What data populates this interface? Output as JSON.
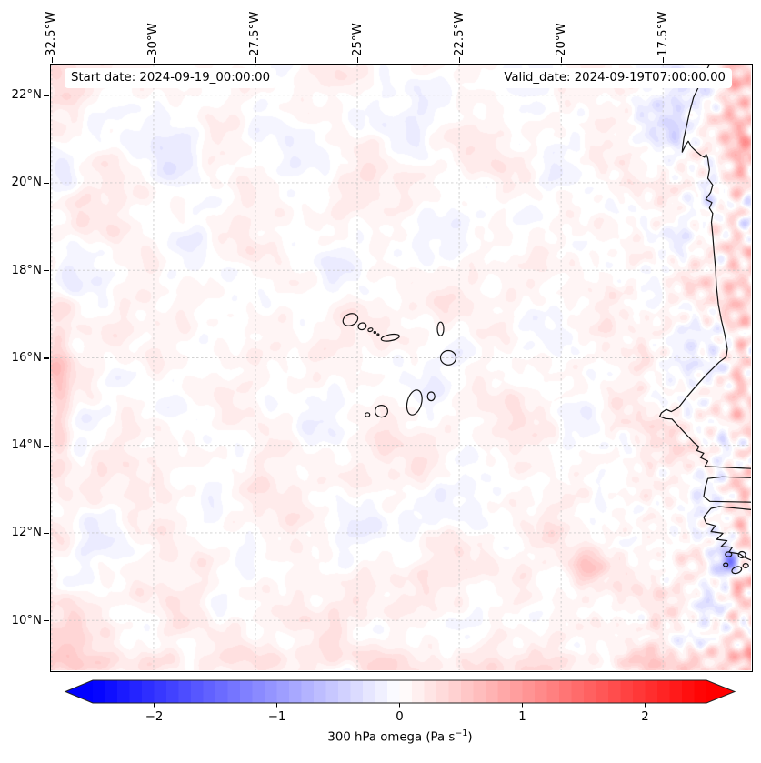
{
  "figure": {
    "annotations": {
      "start_date": "Start date: 2024-09-19_00:00:00",
      "valid_date": "Valid_date: 2024-09-19T07:00:00.00"
    },
    "axes": {
      "extent": {
        "lon_min": -32.52,
        "lon_max": -15.34,
        "lat_min": 8.86,
        "lat_max": 22.7
      },
      "grid": true,
      "x_ticks": [
        {
          "label": "32.5°W",
          "lon": -32.5
        },
        {
          "label": "30°W",
          "lon": -30.0
        },
        {
          "label": "27.5°W",
          "lon": -27.5
        },
        {
          "label": "25°W",
          "lon": -25.0
        },
        {
          "label": "22.5°W",
          "lon": -22.5
        },
        {
          "label": "20°W",
          "lon": -20.0
        },
        {
          "label": "17.5°W",
          "lon": -17.5
        }
      ],
      "y_ticks": [
        {
          "label": "22°N",
          "lat": 22
        },
        {
          "label": "20°N",
          "lat": 20
        },
        {
          "label": "18°N",
          "lat": 18
        },
        {
          "label": "16°N",
          "lat": 16
        },
        {
          "label": "14°N",
          "lat": 14
        },
        {
          "label": "12°N",
          "lat": 12
        },
        {
          "label": "10°N",
          "lat": 10
        }
      ]
    },
    "colorbar": {
      "label_prefix": "300 hPa omega (Pa s",
      "label_sup": "−1",
      "label_suffix": ")",
      "ticks": [
        "−2",
        "−1",
        "0",
        "1",
        "2"
      ],
      "tick_values": [
        -2,
        -1,
        0,
        1,
        2
      ],
      "vmin": -2.5,
      "vmax": 2.5,
      "step": 0.1,
      "colormap": "bwr",
      "extend": "both",
      "end_colors": {
        "low": "#0000ff",
        "high": "#ff0000"
      },
      "outline_color": "#222222"
    },
    "grid_color": "#c3c3c3",
    "coast_color": "#111111"
  },
  "field": {
    "quantity": "300 hPa omega",
    "units": "Pa s−1",
    "quantize_step": 0.1,
    "bias": [
      0.035,
      0.045
    ],
    "noise_octaves": [
      [
        0.105,
        0.031,
        0.009,
        1.7,
        -0.01,
        0.033,
        0.6
      ],
      [
        0.09,
        0.02,
        -0.024,
        4.2,
        0.026,
        0.018,
        2.9
      ],
      [
        0.075,
        0.013,
        0.055,
        0.9,
        0.058,
        -0.014,
        5.1
      ],
      [
        0.06,
        0.082,
        -0.022,
        2.8,
        0.024,
        0.078,
        1.3
      ],
      [
        0.05,
        0.095,
        0.08,
        5.5,
        -0.082,
        0.09,
        3.8
      ],
      [
        0.04,
        0.06,
        -0.165,
        3.3,
        0.158,
        0.052,
        0.2
      ]
    ],
    "hf_octaves": [
      [
        0.16,
        0.23,
        0.05,
        0.4,
        0.06,
        -0.21,
        2.2
      ],
      [
        0.12,
        0.16,
        -0.14,
        1.1,
        0.13,
        0.17,
        4.9
      ]
    ],
    "features": [
      [
        -15.82,
        11.34,
        14,
        -1.0
      ],
      [
        -15.82,
        11.34,
        6,
        -0.6
      ],
      [
        -16.15,
        11.97,
        20,
        -0.35
      ],
      [
        -19.43,
        11.2,
        15,
        0.45
      ],
      [
        -17.38,
        21.28,
        24,
        -0.25
      ],
      [
        -32.26,
        17.12,
        13,
        0.35
      ],
      [
        -23.74,
        12.44,
        17,
        -0.22
      ],
      [
        -29.32,
        20.65,
        22,
        -0.22
      ]
    ]
  },
  "geo": {
    "coastlines": [
      [
        [
          -16.36,
          22.7
        ],
        [
          -16.5,
          22.45
        ],
        [
          -16.62,
          22.2
        ],
        [
          -16.75,
          21.95
        ],
        [
          -16.85,
          21.6
        ],
        [
          -16.92,
          21.3
        ],
        [
          -16.99,
          21.0
        ],
        [
          -17.02,
          20.8
        ],
        [
          -17.03,
          20.7
        ],
        [
          -16.95,
          20.85
        ],
        [
          -16.88,
          20.95
        ],
        [
          -16.8,
          20.82
        ],
        [
          -16.7,
          20.73
        ],
        [
          -16.56,
          20.62
        ],
        [
          -16.48,
          20.58
        ],
        [
          -16.44,
          20.65
        ],
        [
          -16.4,
          20.56
        ],
        [
          -16.36,
          20.3
        ],
        [
          -16.4,
          20.1
        ],
        [
          -16.28,
          19.95
        ],
        [
          -16.33,
          19.78
        ],
        [
          -16.45,
          19.62
        ],
        [
          -16.3,
          19.55
        ],
        [
          -16.36,
          19.42
        ],
        [
          -16.28,
          19.3
        ],
        [
          -16.31,
          19.1
        ],
        [
          -16.28,
          18.8
        ],
        [
          -16.25,
          18.45
        ],
        [
          -16.21,
          18.05
        ],
        [
          -16.19,
          17.65
        ],
        [
          -16.14,
          17.22
        ],
        [
          -16.07,
          16.87
        ],
        [
          -15.98,
          16.52
        ],
        [
          -15.92,
          16.2
        ],
        [
          -15.95,
          16.02
        ],
        [
          -16.12,
          15.9
        ],
        [
          -16.45,
          15.6
        ],
        [
          -16.68,
          15.36
        ],
        [
          -16.92,
          15.1
        ],
        [
          -17.12,
          14.86
        ],
        [
          -17.3,
          14.77
        ],
        [
          -17.42,
          14.82
        ],
        [
          -17.54,
          14.74
        ],
        [
          -17.58,
          14.66
        ],
        [
          -17.44,
          14.61
        ],
        [
          -17.28,
          14.6
        ],
        [
          -17.14,
          14.46
        ],
        [
          -17.0,
          14.32
        ],
        [
          -16.86,
          14.18
        ],
        [
          -16.74,
          14.06
        ],
        [
          -16.62,
          13.97
        ],
        [
          -16.67,
          13.88
        ],
        [
          -16.5,
          13.82
        ],
        [
          -16.58,
          13.72
        ],
        [
          -16.4,
          13.64
        ],
        [
          -16.47,
          13.52
        ],
        [
          -15.33,
          13.47
        ]
      ],
      [
        [
          -15.33,
          13.26
        ],
        [
          -16.05,
          13.28
        ],
        [
          -16.4,
          13.24
        ],
        [
          -16.46,
          13.05
        ],
        [
          -16.5,
          12.83
        ],
        [
          -16.35,
          12.72
        ],
        [
          -15.33,
          12.7
        ]
      ],
      [
        [
          -15.33,
          12.53
        ],
        [
          -16.12,
          12.6
        ],
        [
          -16.32,
          12.56
        ],
        [
          -16.5,
          12.36
        ],
        [
          -16.44,
          12.22
        ],
        [
          -16.22,
          12.16
        ],
        [
          -16.32,
          12.03
        ],
        [
          -16.03,
          11.99
        ],
        [
          -16.18,
          11.85
        ],
        [
          -15.93,
          11.82
        ],
        [
          -16.07,
          11.69
        ],
        [
          -15.8,
          11.67
        ],
        [
          -15.88,
          11.56
        ],
        [
          -15.62,
          11.52
        ],
        [
          -15.5,
          11.44
        ],
        [
          -15.33,
          11.37
        ]
      ]
    ],
    "islands": [
      [
        -25.17,
        16.87,
        0.19,
        0.13,
        -25
      ],
      [
        -24.88,
        16.72,
        0.1,
        0.077,
        -15
      ],
      [
        -24.68,
        16.64,
        0.057,
        0.038,
        -20
      ],
      [
        -24.57,
        16.58,
        0.025,
        0.02,
        0
      ],
      [
        -24.49,
        16.53,
        0.022,
        0.018,
        0
      ],
      [
        -24.19,
        16.46,
        0.225,
        0.07,
        -10
      ],
      [
        -22.96,
        16.66,
        0.077,
        0.155,
        0
      ],
      [
        -22.77,
        16.0,
        0.19,
        0.165,
        0
      ],
      [
        -23.19,
        15.12,
        0.09,
        0.1,
        0
      ],
      [
        -23.6,
        14.98,
        0.175,
        0.29,
        15
      ],
      [
        -24.41,
        14.78,
        0.155,
        0.135,
        0
      ],
      [
        -24.75,
        14.7,
        0.056,
        0.045,
        0
      ],
      [
        -15.89,
        11.51,
        0.078,
        0.055,
        0
      ],
      [
        -15.56,
        11.5,
        0.09,
        0.072,
        0
      ],
      [
        -15.96,
        11.27,
        0.055,
        0.04,
        0
      ],
      [
        -15.69,
        11.15,
        0.122,
        0.072,
        -20
      ],
      [
        -15.47,
        11.25,
        0.066,
        0.05,
        0
      ]
    ]
  }
}
